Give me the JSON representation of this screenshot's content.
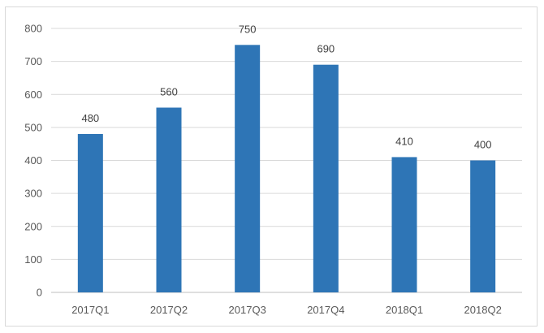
{
  "chart_data": {
    "type": "bar",
    "title": "",
    "xlabel": "",
    "ylabel": "",
    "categories": [
      "2017Q1",
      "2017Q2",
      "2017Q3",
      "2017Q4",
      "2018Q1",
      "2018Q2"
    ],
    "values": [
      480,
      560,
      750,
      690,
      410,
      400
    ],
    "data_labels": [
      "480",
      "560",
      "750",
      "690",
      "410",
      "400"
    ],
    "ylim": [
      0,
      800
    ],
    "yticks": [
      0,
      100,
      200,
      300,
      400,
      500,
      600,
      700,
      800
    ],
    "ytick_labels": [
      "0",
      "100",
      "200",
      "300",
      "400",
      "500",
      "600",
      "700",
      "800"
    ],
    "grid": true,
    "legend": "none",
    "colors": {
      "bar": "#2e75b6",
      "grid": "#d9d9d9",
      "axis": "#bfbfbf"
    }
  }
}
